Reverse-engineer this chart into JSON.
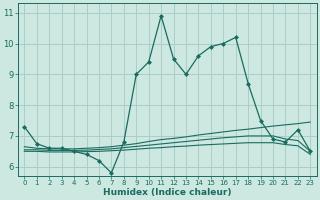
{
  "xlabel": "Humidex (Indice chaleur)",
  "bg_color": "#cce8e0",
  "grid_color": "#aacfc8",
  "line_color": "#1a6b60",
  "xlim": [
    -0.5,
    23.5
  ],
  "ylim": [
    5.7,
    11.3
  ],
  "xticks": [
    0,
    1,
    2,
    3,
    4,
    5,
    6,
    7,
    8,
    9,
    10,
    11,
    12,
    13,
    14,
    15,
    16,
    17,
    18,
    19,
    20,
    21,
    22,
    23
  ],
  "yticks": [
    6,
    7,
    8,
    9,
    10,
    11
  ],
  "series": [
    [
      7.3,
      6.75,
      6.6,
      6.6,
      6.5,
      6.4,
      6.2,
      5.8,
      6.8,
      9.0,
      9.4,
      10.9,
      9.5,
      9.0,
      9.6,
      9.9,
      10.0,
      10.2,
      8.7,
      7.5,
      6.9,
      6.8,
      7.2,
      6.5
    ],
    [
      6.65,
      6.6,
      6.58,
      6.58,
      6.58,
      6.6,
      6.62,
      6.65,
      6.7,
      6.75,
      6.82,
      6.88,
      6.92,
      6.97,
      7.03,
      7.08,
      7.13,
      7.18,
      7.22,
      7.27,
      7.32,
      7.36,
      7.4,
      7.45
    ],
    [
      6.55,
      6.55,
      6.53,
      6.53,
      6.53,
      6.54,
      6.56,
      6.58,
      6.62,
      6.66,
      6.7,
      6.74,
      6.78,
      6.82,
      6.86,
      6.9,
      6.94,
      6.97,
      7.0,
      7.0,
      7.0,
      6.9,
      6.85,
      6.5
    ],
    [
      6.5,
      6.5,
      6.48,
      6.48,
      6.48,
      6.49,
      6.5,
      6.52,
      6.54,
      6.57,
      6.6,
      6.62,
      6.65,
      6.67,
      6.7,
      6.72,
      6.74,
      6.76,
      6.78,
      6.78,
      6.78,
      6.72,
      6.68,
      6.4
    ]
  ]
}
